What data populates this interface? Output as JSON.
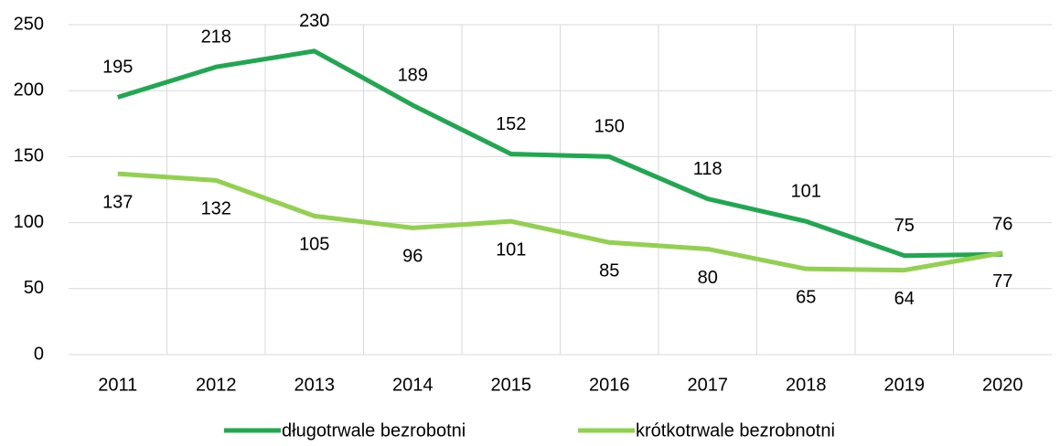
{
  "chart_data": {
    "type": "line",
    "categories": [
      "2011",
      "2012",
      "2013",
      "2014",
      "2015",
      "2016",
      "2017",
      "2018",
      "2019",
      "2020"
    ],
    "series": [
      {
        "name": "długotrwale bezrobotni",
        "color": "#1fa84f",
        "values": [
          195,
          218,
          230,
          189,
          152,
          150,
          118,
          101,
          75,
          76
        ]
      },
      {
        "name": "krótkotrwale bezrobnotni",
        "color": "#92d050",
        "values": [
          137,
          132,
          105,
          96,
          101,
          85,
          80,
          65,
          64,
          77
        ]
      }
    ],
    "ylim": [
      0,
      250
    ],
    "yticks": [
      0,
      50,
      100,
      150,
      200,
      250
    ],
    "grid": true,
    "legend": "bottom"
  }
}
